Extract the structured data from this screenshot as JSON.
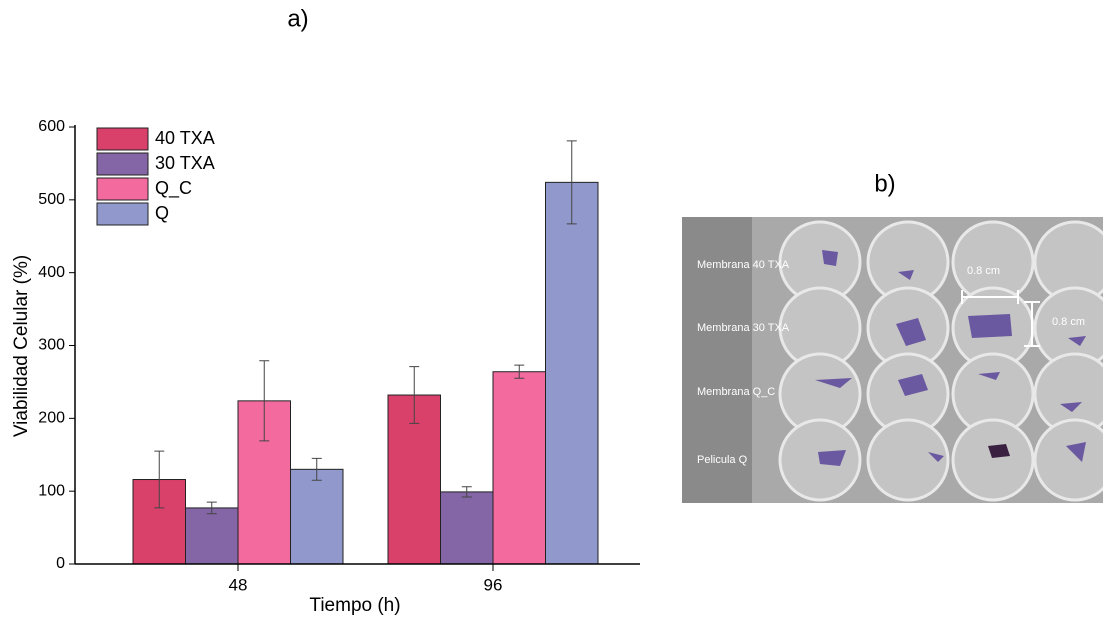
{
  "chart_data": {
    "type": "bar",
    "panel_label": "a)",
    "x_label": "Tiempo (h)",
    "y_label": "Viabilidad Celular (%)",
    "categories": [
      "48",
      "96"
    ],
    "series": [
      {
        "name": "40 TXA",
        "color": "#d9406a",
        "values": [
          116,
          232
        ],
        "errors": [
          39,
          39
        ]
      },
      {
        "name": "30 TXA",
        "color": "#8466a6",
        "values": [
          77,
          99
        ],
        "errors": [
          8,
          7
        ]
      },
      {
        "name": "Q_C",
        "color": "#f36a9f",
        "values": [
          224,
          264
        ],
        "errors": [
          55,
          9
        ]
      },
      {
        "name": "Q",
        "color": "#9199cc",
        "values": [
          130,
          524
        ],
        "errors": [
          15,
          57
        ]
      }
    ],
    "ylim": [
      0,
      600
    ],
    "yticks": [
      0,
      100,
      200,
      300,
      400,
      500,
      600
    ],
    "legend": "upper-left"
  },
  "photo": {
    "panel_label": "b)",
    "row_labels": [
      "Membrana 40 TXA",
      "Membrana 30 TXA",
      "Membrana Q_C",
      "Pelicula Q"
    ],
    "dimensions": [
      "0.8 cm",
      "0.8 cm"
    ]
  }
}
